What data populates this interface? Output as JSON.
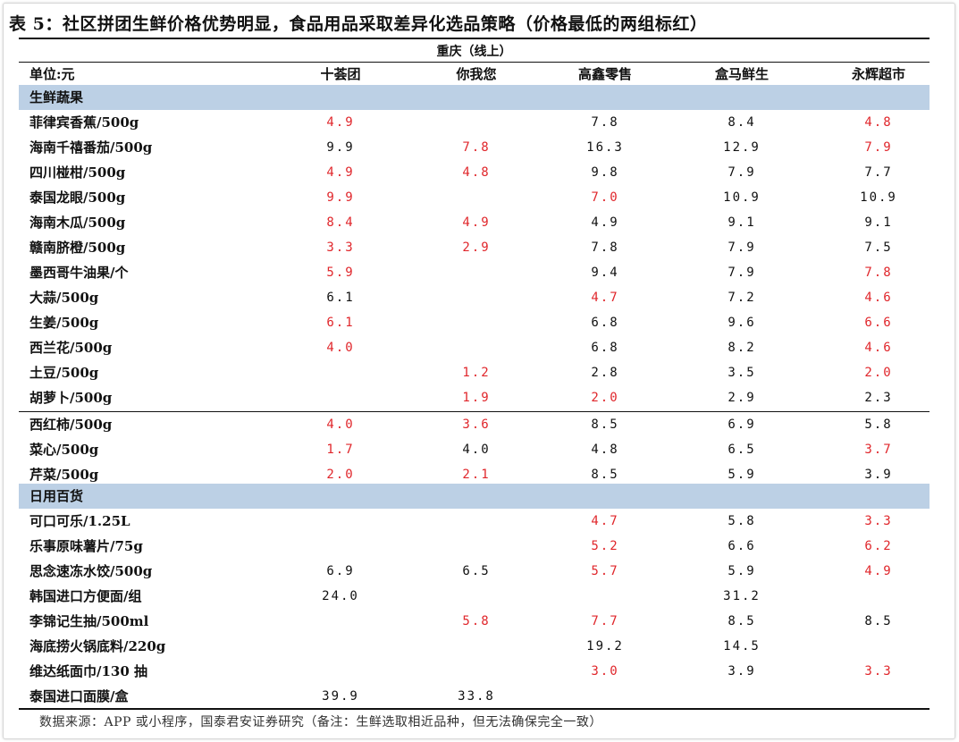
{
  "title": "表 5：社区拼团生鲜价格优势明显，食品用品采取差异化选品策略（价格最低的两组标红）",
  "region": "重庆（线上）",
  "header": {
    "unit": "单位:元",
    "cols": [
      "十荟团",
      "你我您",
      "高鑫零售",
      "盒马鲜生",
      "永辉超市"
    ]
  },
  "sections": [
    {
      "label": "生鲜蔬果",
      "rows": [
        {
          "name": "菲律宾香蕉/500g",
          "values": [
            "4.9",
            "",
            "7.8",
            "8.4",
            "4.8"
          ],
          "red": [
            true,
            false,
            false,
            false,
            true
          ]
        },
        {
          "name": "海南千禧番茄/500g",
          "values": [
            "9.9",
            "7.8",
            "16.3",
            "12.9",
            "7.9"
          ],
          "red": [
            false,
            true,
            false,
            false,
            true
          ]
        },
        {
          "name": "四川椪柑/500g",
          "values": [
            "4.9",
            "4.8",
            "9.8",
            "7.9",
            "7.7"
          ],
          "red": [
            true,
            true,
            false,
            false,
            false
          ]
        },
        {
          "name": "泰国龙眼/500g",
          "values": [
            "9.9",
            "",
            "7.0",
            "10.9",
            "10.9"
          ],
          "red": [
            true,
            false,
            true,
            false,
            false
          ]
        },
        {
          "name": "海南木瓜/500g",
          "values": [
            "8.4",
            "4.9",
            "4.9",
            "9.1",
            "9.1"
          ],
          "red": [
            true,
            true,
            false,
            false,
            false
          ]
        },
        {
          "name": "赣南脐橙/500g",
          "values": [
            "3.3",
            "2.9",
            "7.8",
            "7.9",
            "7.5"
          ],
          "red": [
            true,
            true,
            false,
            false,
            false
          ]
        },
        {
          "name": "墨西哥牛油果/个",
          "values": [
            "5.9",
            "",
            "9.4",
            "7.9",
            "7.8"
          ],
          "red": [
            true,
            false,
            false,
            false,
            true
          ]
        },
        {
          "name": "大蒜/500g",
          "values": [
            "6.1",
            "",
            "4.7",
            "7.2",
            "4.6"
          ],
          "red": [
            false,
            false,
            true,
            false,
            true
          ]
        },
        {
          "name": "生姜/500g",
          "values": [
            "6.1",
            "",
            "6.8",
            "9.6",
            "6.6"
          ],
          "red": [
            true,
            false,
            false,
            false,
            true
          ]
        },
        {
          "name": "西兰花/500g",
          "values": [
            "4.0",
            "",
            "6.8",
            "8.2",
            "4.6"
          ],
          "red": [
            true,
            false,
            false,
            false,
            true
          ]
        },
        {
          "name": "土豆/500g",
          "values": [
            "",
            "1.2",
            "2.8",
            "3.5",
            "2.0"
          ],
          "red": [
            false,
            true,
            false,
            false,
            true
          ]
        },
        {
          "name": "胡萝卜/500g",
          "values": [
            "",
            "1.9",
            "2.0",
            "2.9",
            "2.3"
          ],
          "red": [
            false,
            true,
            true,
            false,
            false
          ]
        },
        {
          "name": "西红柿/500g",
          "values": [
            "4.0",
            "3.6",
            "8.5",
            "6.9",
            "5.8"
          ],
          "red": [
            true,
            true,
            false,
            false,
            false
          ]
        },
        {
          "name": "菜心/500g",
          "values": [
            "1.7",
            "4.0",
            "4.8",
            "6.5",
            "3.7"
          ],
          "red": [
            true,
            false,
            false,
            false,
            true
          ]
        },
        {
          "name": "芹菜/500g",
          "values": [
            "2.0",
            "2.1",
            "8.5",
            "5.9",
            "3.9"
          ],
          "red": [
            true,
            true,
            false,
            false,
            false
          ]
        }
      ]
    },
    {
      "label": "日用百货",
      "rows": [
        {
          "name": "可口可乐/1.25L",
          "values": [
            "",
            "",
            "4.7",
            "5.8",
            "3.3"
          ],
          "red": [
            false,
            false,
            true,
            false,
            true
          ]
        },
        {
          "name": "乐事原味薯片/75g",
          "values": [
            "",
            "",
            "5.2",
            "6.6",
            "6.2"
          ],
          "red": [
            false,
            false,
            true,
            false,
            true
          ]
        },
        {
          "name": "思念速冻水饺/500g",
          "values": [
            "6.9",
            "6.5",
            "5.7",
            "5.9",
            "4.9"
          ],
          "red": [
            false,
            false,
            true,
            false,
            true
          ]
        },
        {
          "name": "韩国进口方便面/组",
          "values": [
            "24.0",
            "",
            "",
            "31.2",
            ""
          ],
          "red": [
            false,
            false,
            false,
            false,
            false
          ]
        },
        {
          "name": "李锦记生抽/500ml",
          "values": [
            "",
            "5.8",
            "7.7",
            "8.5",
            "8.5"
          ],
          "red": [
            false,
            true,
            true,
            false,
            false
          ]
        },
        {
          "name": "海底捞火锅底料/220g",
          "values": [
            "",
            "",
            "19.2",
            "14.5",
            ""
          ],
          "red": [
            false,
            false,
            false,
            false,
            false
          ]
        },
        {
          "name": "维达纸面巾/130 抽",
          "values": [
            "",
            "",
            "3.0",
            "3.9",
            "3.3"
          ],
          "red": [
            false,
            false,
            true,
            false,
            true
          ]
        },
        {
          "name": "泰国进口面膜/盒",
          "values": [
            "39.9",
            "33.8",
            "",
            "",
            ""
          ],
          "red": [
            false,
            false,
            false,
            false,
            false
          ]
        }
      ]
    }
  ],
  "source": "数据来源：APP 或小程序，国泰君安证券研究（备注：生鲜选取相近品种，但无法确保完全一致）",
  "colors": {
    "highlight": "#e0262b",
    "section_bg": "#bcd0e5"
  }
}
